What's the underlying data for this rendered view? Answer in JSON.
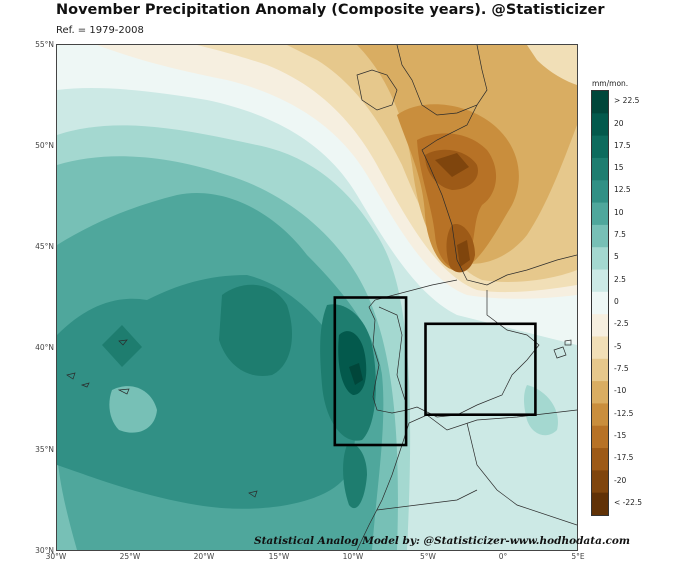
{
  "title": "November Precipitation Anomaly (Composite years). @Statisticizer",
  "subtitle": "Ref. = 1979-2008",
  "credit": "Statistical Analog Model by: @Statisticizer-www.hodhodata.com",
  "colorbar": {
    "unit": "mm/mon.",
    "labels": [
      "> 22.5",
      "20",
      "17.5",
      "15",
      "12.5",
      "10",
      "7.5",
      "5",
      "2.5",
      "0",
      "-2.5",
      "-5",
      "-7.5",
      "-10",
      "-12.5",
      "-15",
      "-17.5",
      "-20",
      "< -22.5"
    ],
    "colors": [
      "#01463a",
      "#03594c",
      "#0d6b5d",
      "#1e7d6f",
      "#319085",
      "#4fa79c",
      "#77c0b6",
      "#a4d8d0",
      "#cce9e5",
      "#eef7f5",
      "#f6efe0",
      "#f1dfb7",
      "#e6c88c",
      "#d9ad62",
      "#c98e3d",
      "#b77226",
      "#9d5a17",
      "#7f450d",
      "#603106"
    ]
  },
  "axes": {
    "lat_labels": [
      "55°N",
      "50°N",
      "45°N",
      "40°N",
      "35°N",
      "30°N"
    ],
    "lon_labels": [
      "30°W",
      "25°W",
      "20°W",
      "15°W",
      "10°W",
      "5°W",
      "0°",
      "5°E"
    ],
    "lon_range": [
      -30,
      5
    ],
    "lat_range": [
      30,
      55
    ]
  },
  "boxes": [
    {
      "name": "west-iberia-box",
      "lon": [
        -11.3,
        -6.5
      ],
      "lat": [
        35.2,
        42.5
      ]
    },
    {
      "name": "east-iberia-box",
      "lon": [
        -5.2,
        2.2
      ],
      "lat": [
        36.7,
        41.2
      ]
    }
  ]
}
